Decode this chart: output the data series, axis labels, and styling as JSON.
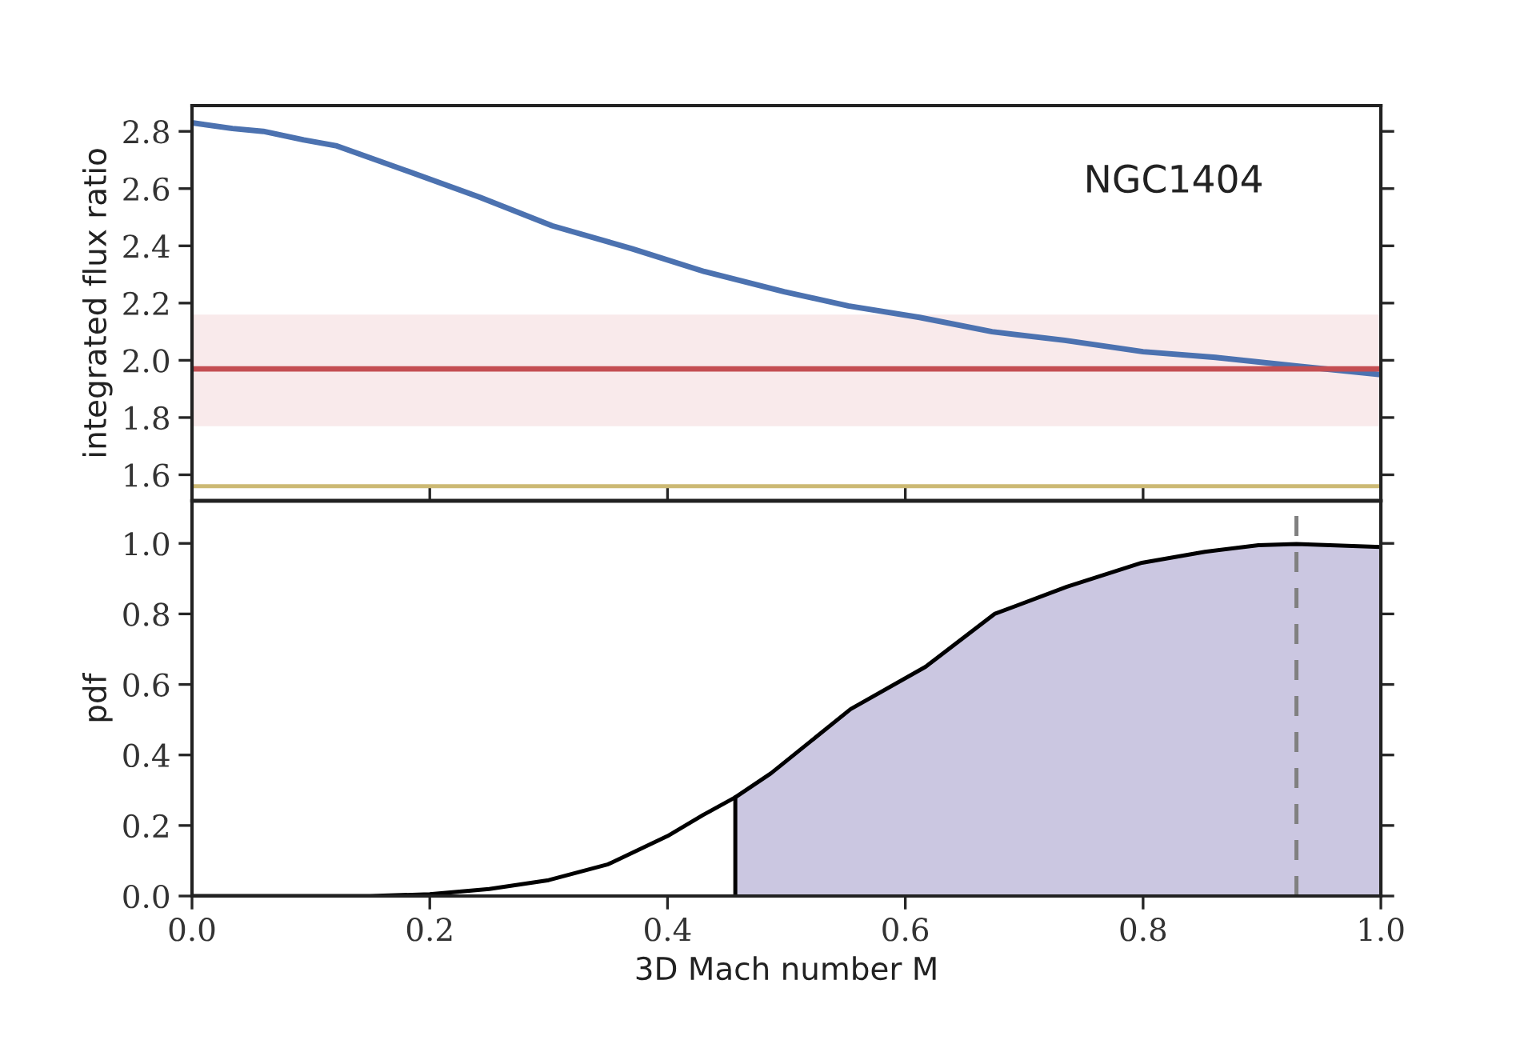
{
  "chart_data": [
    {
      "type": "line",
      "ylabel": "integrated flux ratio",
      "annotations": [
        "NGC1404"
      ],
      "xlim": [
        0,
        1
      ],
      "xticks": [
        0.2,
        0.4,
        0.6,
        0.8
      ],
      "ylim": [
        1.51,
        2.89
      ],
      "yticks": [
        1.6,
        1.8,
        {
          "value": 2,
          "label": "2.0"
        },
        2.2,
        2.4,
        2.6,
        2.8
      ],
      "tick_labels": "y",
      "grid": false,
      "legend": false,
      "series": [
        {
          "color": "#4c72b0",
          "x": [
            0,
            0.034,
            0.06,
            0.094,
            0.121,
            0.182,
            0.242,
            0.303,
            0.37,
            0.431,
            0.498,
            0.552,
            0.612,
            0.673,
            0.734,
            0.8,
            0.861,
            0.929,
            1.0
          ],
          "values": [
            2.83,
            2.81,
            2.8,
            2.77,
            2.75,
            2.66,
            2.57,
            2.47,
            2.39,
            2.31,
            2.24,
            2.19,
            2.15,
            2.1,
            2.07,
            2.03,
            2.01,
            1.98,
            1.95
          ]
        },
        {
          "color": "#ccb974",
          "x": [
            0,
            0.5,
            1.0
          ],
          "values": [
            1.56,
            1.56,
            1.56
          ]
        }
      ],
      "ref_lines": [
        {
          "axis": "y",
          "value": 1.97,
          "color": "#c44e52"
        }
      ],
      "bands": [
        {
          "axis": "y",
          "from": 1.77,
          "to": 2.16,
          "color": "#f9eaeb"
        }
      ]
    },
    {
      "type": "line",
      "xlabel": "3D Mach number M",
      "ylabel": "pdf",
      "xlim": [
        0,
        1
      ],
      "xticks": [
        {
          "value": 0,
          "label": "0.0"
        },
        0.2,
        0.4,
        0.6,
        0.8,
        {
          "value": 1,
          "label": "1.0"
        }
      ],
      "ylim": [
        0,
        1.12
      ],
      "yticks": [
        {
          "value": 0,
          "label": "0.0"
        },
        0.2,
        0.4,
        0.6,
        0.8,
        {
          "value": 1,
          "label": "1.0"
        }
      ],
      "grid": false,
      "legend": false,
      "series": [
        {
          "type": "area",
          "color": "#cbc7e1",
          "x": [
            0.457,
            0.487,
            0.554,
            0.617,
            0.675,
            0.736,
            0.799,
            0.852,
            0.897,
            0.929,
            1.0
          ],
          "values": [
            0.28,
            0.348,
            0.53,
            0.65,
            0.8,
            0.877,
            0.945,
            0.976,
            0.995,
            0.998,
            0.99
          ]
        },
        {
          "color": "#000000",
          "x": [
            0.457,
            0.457
          ],
          "values": [
            0,
            0.28
          ]
        },
        {
          "color": "#000000",
          "x": [
            0,
            0.15,
            0.2,
            0.25,
            0.3,
            0.35,
            0.4,
            0.43,
            0.457,
            0.487,
            0.554,
            0.617,
            0.675,
            0.736,
            0.799,
            0.852,
            0.897,
            0.929,
            1.0
          ],
          "values": [
            0,
            0,
            0.005,
            0.02,
            0.045,
            0.09,
            0.17,
            0.23,
            0.28,
            0.348,
            0.53,
            0.65,
            0.8,
            0.877,
            0.945,
            0.976,
            0.995,
            0.998,
            0.99
          ]
        }
      ],
      "ref_lines": [
        {
          "axis": "x",
          "value": 0.929,
          "color": "#808080",
          "line_style": "dashed"
        }
      ]
    }
  ]
}
